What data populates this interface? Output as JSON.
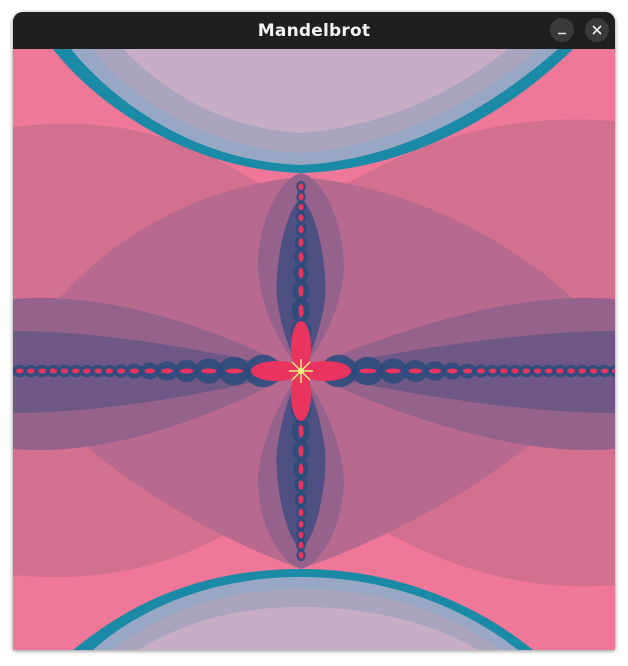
{
  "window": {
    "title": "Mandelbrot",
    "buttons": {
      "minimize_icon": "minimize-icon",
      "close_icon": "close-icon"
    }
  },
  "palette": {
    "background": "#ef7797",
    "band_outer": "#d4708f",
    "band_mid": "#b76a8d",
    "band_inner": "#94628a",
    "lobe_dark": "#6f5886",
    "lobe_darker": "#4e4f82",
    "core_blue": "#2a4b7c",
    "filament_red": "#e8345e",
    "teal": "#1a8aa6",
    "lavender": "#c7aec6",
    "lavender_dark": "#aaa4be",
    "lavender_blue": "#98a8c4",
    "center_yellow": "#e9f27a"
  }
}
